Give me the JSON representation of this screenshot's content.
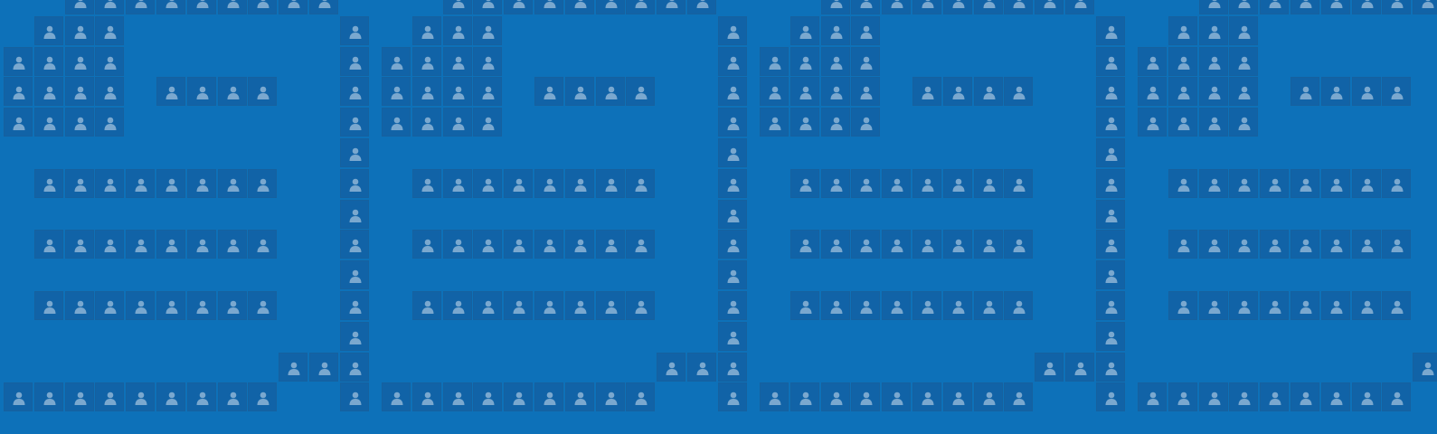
{
  "pattern": {
    "background_color": "#0d71b9",
    "tile_color": "#1163a7",
    "icon_color": "#7aa8cf",
    "icon": "person-icon",
    "motif_rows": [
      "..#########.",
      ".###.......#",
      "####.......#",
      "####.####..#",
      "####.......#",
      "...........#",
      ".########..#",
      "...........#",
      ".########..#",
      "...........#",
      ".########..#",
      "...........#",
      ".........###",
      "#########..#"
    ],
    "motif_repeats": 4
  }
}
